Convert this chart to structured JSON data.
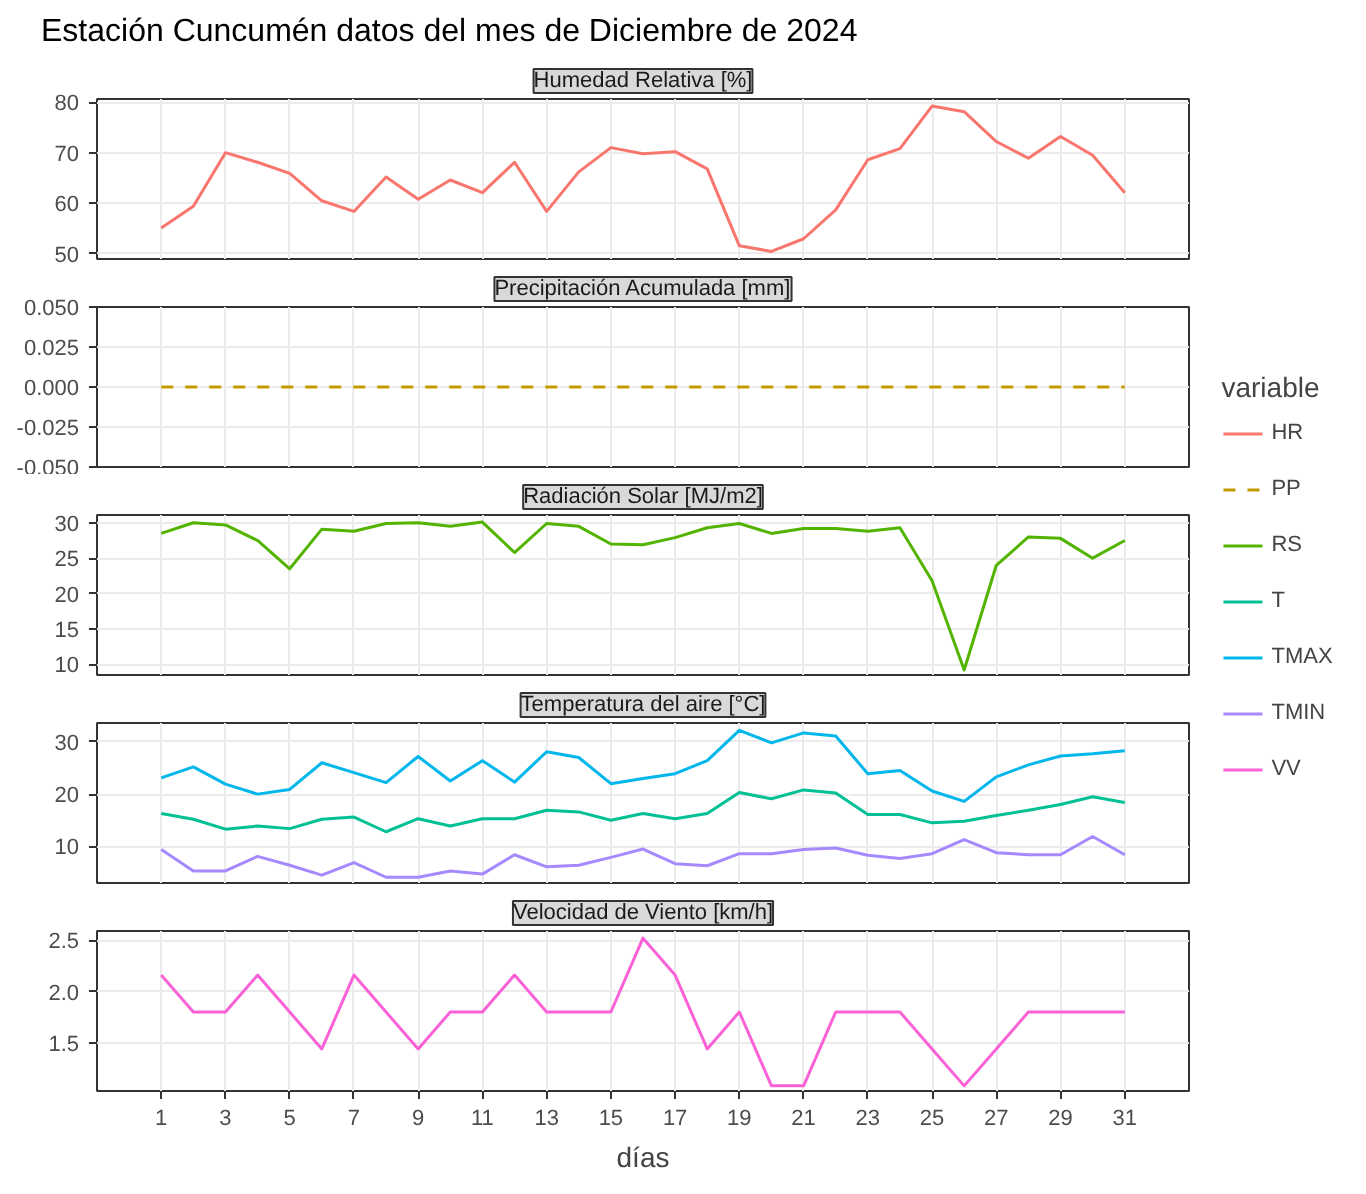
{
  "chart_data": [
    {
      "type": "line",
      "title": "Estación Cuncumén datos del mes de Diciembre de 2024",
      "subtitle": "Humedad Relativa [%]",
      "legend_title": "variable",
      "legend": "right",
      "grid": true,
      "tick_labels": "y",
      "x": [
        1,
        2,
        3,
        4,
        5,
        6,
        7,
        8,
        9,
        10,
        11,
        12,
        13,
        14,
        15,
        16,
        17,
        18,
        19,
        20,
        21,
        22,
        23,
        24,
        25,
        26,
        27,
        28,
        29,
        30,
        31
      ],
      "xlim": [
        -1,
        33
      ],
      "xticks": [
        1,
        3,
        5,
        7,
        9,
        11,
        13,
        15,
        17,
        19,
        21,
        23,
        25,
        27,
        29,
        31
      ],
      "ylim": [
        49,
        80.6
      ],
      "yticks": [
        50,
        60,
        70,
        80
      ],
      "series": [
        {
          "name": "HR",
          "color": "#f8766d",
          "values": [
            55.1,
            59.4,
            70,
            68.1,
            65.9,
            60.5,
            58.4,
            65.2,
            60.8,
            64.6,
            62.1,
            68.1,
            58.4,
            66.2,
            71,
            69.8,
            70.2,
            66.8,
            51.6,
            50.5,
            53,
            58.7,
            68.6,
            70.8,
            79.2,
            78.1,
            72.2,
            68.9,
            73.2,
            69.5,
            62.1
          ]
        }
      ]
    },
    {
      "type": "line",
      "title": "Precipitación Acumulada [mm]",
      "legend": "right",
      "grid": true,
      "tick_labels": "y",
      "x": [
        1,
        2,
        3,
        4,
        5,
        6,
        7,
        8,
        9,
        10,
        11,
        12,
        13,
        14,
        15,
        16,
        17,
        18,
        19,
        20,
        21,
        22,
        23,
        24,
        25,
        26,
        27,
        28,
        29,
        30,
        31
      ],
      "xlim": [
        -1,
        33
      ],
      "xticks": [
        1,
        3,
        5,
        7,
        9,
        11,
        13,
        15,
        17,
        19,
        21,
        23,
        25,
        27,
        29,
        31
      ],
      "ylim": [
        -0.05,
        0.05
      ],
      "yticks": [
        {
          "value": -0.05,
          "label": "-0.050"
        },
        {
          "value": -0.025,
          "label": "-0.025"
        },
        {
          "value": 0,
          "label": "0.000"
        },
        {
          "value": 0.025,
          "label": "0.025"
        },
        {
          "value": 0.05,
          "label": "0.050"
        }
      ],
      "series": [
        {
          "name": "PP",
          "color": "#c49a00",
          "line_style": "dashed",
          "values": [
            0,
            0,
            0,
            0,
            0,
            0,
            0,
            0,
            0,
            0,
            0,
            0,
            0,
            0,
            0,
            0,
            0,
            0,
            0,
            0,
            0,
            0,
            0,
            0,
            0,
            0,
            0,
            0,
            0,
            0,
            0
          ]
        }
      ]
    },
    {
      "type": "line",
      "title": "Radiación Solar [MJ/m2]",
      "legend": "right",
      "grid": true,
      "tick_labels": "y",
      "x": [
        1,
        2,
        3,
        4,
        5,
        6,
        7,
        8,
        9,
        10,
        11,
        12,
        13,
        14,
        15,
        16,
        17,
        18,
        19,
        20,
        21,
        22,
        23,
        24,
        25,
        26,
        27,
        28,
        29,
        30,
        31
      ],
      "xlim": [
        -1,
        33
      ],
      "xticks": [
        1,
        3,
        5,
        7,
        9,
        11,
        13,
        15,
        17,
        19,
        21,
        23,
        25,
        27,
        29,
        31
      ],
      "ylim": [
        8.5,
        31.1
      ],
      "yticks": [
        10,
        15,
        20,
        25,
        30
      ],
      "series": [
        {
          "name": "RS",
          "color": "#53b400",
          "values": [
            28.5,
            30,
            29.7,
            27.5,
            23.5,
            29.1,
            28.8,
            29.9,
            30,
            29.5,
            30.1,
            25.8,
            29.9,
            29.5,
            27,
            26.9,
            27.9,
            29.3,
            29.9,
            28.5,
            29.2,
            29.2,
            28.8,
            29.3,
            21.8,
            9.2,
            24,
            28,
            27.8,
            25,
            27.5
          ]
        }
      ]
    },
    {
      "type": "line",
      "title": "Temperatura del aire [°C]",
      "legend": "right",
      "grid": true,
      "tick_labels": "y",
      "x": [
        1,
        2,
        3,
        4,
        5,
        6,
        7,
        8,
        9,
        10,
        11,
        12,
        13,
        14,
        15,
        16,
        17,
        18,
        19,
        20,
        21,
        22,
        23,
        24,
        25,
        26,
        27,
        28,
        29,
        30,
        31
      ],
      "xlim": [
        -1,
        33
      ],
      "xticks": [
        1,
        3,
        5,
        7,
        9,
        11,
        13,
        15,
        17,
        19,
        21,
        23,
        25,
        27,
        29,
        31
      ],
      "ylim": [
        3,
        33.6
      ],
      "yticks": [
        10,
        20,
        30
      ],
      "series": [
        {
          "name": "T",
          "color": "#00c094",
          "values": [
            16.3,
            15.2,
            13.3,
            13.9,
            13.4,
            15.2,
            15.6,
            12.8,
            15.3,
            13.9,
            15.3,
            15.3,
            16.9,
            16.6,
            15,
            16.3,
            15.3,
            16.3,
            20.3,
            19.1,
            20.8,
            20.2,
            16.1,
            16.1,
            14.5,
            14.8,
            15.9,
            16.9,
            18,
            19.5,
            18.4
          ]
        },
        {
          "name": "TMAX",
          "color": "#00b6eb",
          "values": [
            23.1,
            25.2,
            21.9,
            20,
            20.9,
            26,
            24.1,
            22.2,
            27.2,
            22.5,
            26.4,
            22.3,
            28.1,
            27,
            22,
            23,
            23.9,
            26.4,
            32.2,
            29.8,
            31.7,
            31.1,
            23.9,
            24.5,
            20.6,
            18.6,
            23.3,
            25.6,
            27.3,
            27.7,
            28.3
          ]
        },
        {
          "name": "TMIN",
          "color": "#a58aff",
          "values": [
            9.4,
            5.3,
            5.3,
            8.1,
            6.4,
            4.5,
            6.9,
            4.1,
            4.1,
            5.3,
            4.7,
            8.4,
            6.1,
            6.4,
            7.9,
            9.5,
            6.7,
            6.3,
            8.6,
            8.6,
            9.4,
            9.7,
            8.3,
            7.7,
            8.6,
            11.3,
            8.8,
            8.4,
            8.4,
            11.9,
            8.4
          ]
        }
      ]
    },
    {
      "type": "line",
      "title": "Velocidad de Viento [km/h]",
      "xlabel": "días",
      "legend": "right",
      "grid": true,
      "x": [
        1,
        2,
        3,
        4,
        5,
        6,
        7,
        8,
        9,
        10,
        11,
        12,
        13,
        14,
        15,
        16,
        17,
        18,
        19,
        20,
        21,
        22,
        23,
        24,
        25,
        26,
        27,
        28,
        29,
        30,
        31
      ],
      "xlim": [
        -1,
        33
      ],
      "xticks": [
        1,
        3,
        5,
        7,
        9,
        11,
        13,
        15,
        17,
        19,
        21,
        23,
        25,
        27,
        29,
        31
      ],
      "ylim": [
        1.03,
        2.59
      ],
      "yticks": [
        {
          "value": 1.5,
          "label": "1.5"
        },
        {
          "value": 2.0,
          "label": "2.0"
        },
        {
          "value": 2.5,
          "label": "2.5"
        }
      ],
      "series": [
        {
          "name": "VV",
          "color": "#fb61d7",
          "values": [
            2.16,
            1.8,
            1.8,
            2.16,
            1.8,
            1.44,
            2.16,
            1.8,
            1.44,
            1.8,
            1.8,
            2.16,
            1.8,
            1.8,
            1.8,
            2.52,
            2.16,
            1.44,
            1.8,
            1.08,
            1.08,
            1.8,
            1.8,
            1.8,
            1.44,
            1.08,
            1.44,
            1.8,
            1.8,
            1.8,
            1.8
          ]
        }
      ]
    }
  ]
}
